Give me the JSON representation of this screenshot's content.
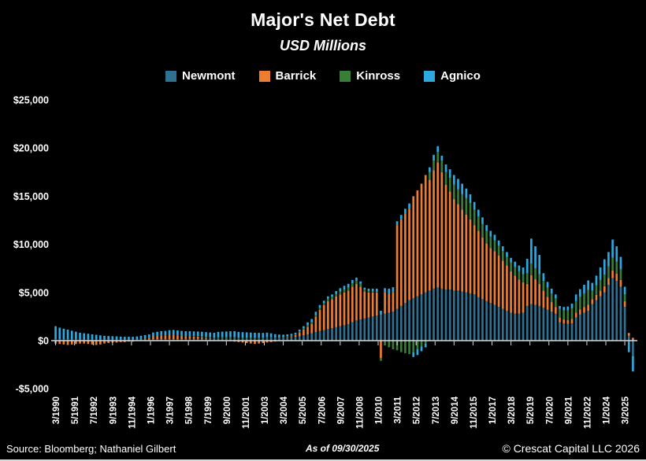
{
  "header": {
    "title": "Major's Net Debt",
    "subtitle": "USD Millions"
  },
  "footer": {
    "source": "Source: Bloomberg; Nathaniel Gilbert",
    "as_of": "As of 09/30/2025",
    "copyright": "© Crescat Capital LLC 2026"
  },
  "chart_data": {
    "type": "bar",
    "stacked": true,
    "title": "Major's Net Debt",
    "subtitle": "USD Millions",
    "xlabel": "",
    "ylabel": "USD Millions",
    "frequency": "quarterly",
    "x_start": "3/1990",
    "x_end": "9/2025",
    "ylim": [
      -5000,
      25000
    ],
    "grid": false,
    "legend_position": "top",
    "background_color": "#000000",
    "axis_color": "#d9d9d9",
    "text_color": "#ffffff",
    "y_ticks": [
      25000,
      20000,
      15000,
      10000,
      5000,
      0,
      -5000
    ],
    "y_tick_labels": [
      "$25,000",
      "$20,000",
      "$15,000",
      "$10,000",
      "$5,000",
      "$0",
      "-$5,000"
    ],
    "x_tick_labels": [
      "3/1990",
      "5/1991",
      "7/1992",
      "9/1993",
      "11/1994",
      "1/1996",
      "3/1997",
      "5/1998",
      "7/1999",
      "9/2000",
      "11/2001",
      "1/2003",
      "3/2004",
      "5/2005",
      "7/2006",
      "9/2007",
      "11/2008",
      "1/2010",
      "3/2011",
      "5/2012",
      "7/2013",
      "9/2014",
      "11/2015",
      "1/2017",
      "3/2018",
      "5/2019",
      "7/2020",
      "9/2021",
      "11/2022",
      "1/2024",
      "3/2025"
    ],
    "series": [
      {
        "name": "Newmont",
        "color": "#2E7193",
        "values": [
          150,
          150,
          140,
          140,
          130,
          130,
          120,
          120,
          120,
          110,
          110,
          100,
          100,
          100,
          100,
          100,
          100,
          100,
          100,
          100,
          120,
          120,
          120,
          120,
          150,
          150,
          150,
          150,
          160,
          160,
          160,
          160,
          180,
          180,
          180,
          180,
          200,
          200,
          200,
          200,
          220,
          220,
          220,
          220,
          220,
          210,
          200,
          200,
          200,
          200,
          210,
          210,
          250,
          260,
          270,
          280,
          320,
          340,
          360,
          380,
          450,
          550,
          650,
          750,
          900,
          1000,
          1100,
          1200,
          1300,
          1400,
          1500,
          1600,
          1700,
          1900,
          2100,
          2200,
          2300,
          2400,
          2500,
          2600,
          2700,
          2800,
          2900,
          3000,
          3300,
          3600,
          3900,
          4200,
          4400,
          4600,
          4800,
          5000,
          5200,
          5400,
          5500,
          5400,
          5300,
          5300,
          5200,
          5200,
          5100,
          5000,
          4900,
          4800,
          4500,
          4300,
          4100,
          3900,
          3700,
          3500,
          3300,
          3100,
          2900,
          2800,
          2800,
          2900,
          3600,
          3800,
          3700,
          3600,
          3400,
          3200,
          3000,
          2800,
          1900,
          1800,
          1750,
          1800,
          2400,
          2700,
          2900,
          3100,
          3800,
          4200,
          4600,
          5000,
          5800,
          6500,
          6200,
          5600,
          3500,
          500,
          -1500
        ]
      },
      {
        "name": "Barrick",
        "color": "#ED7D31",
        "values": [
          -300,
          -350,
          -400,
          -450,
          -400,
          -350,
          -300,
          -300,
          -350,
          -400,
          -450,
          -400,
          -300,
          -250,
          -200,
          -200,
          -150,
          -150,
          -100,
          -100,
          0,
          50,
          100,
          150,
          300,
          350,
          400,
          400,
          450,
          450,
          400,
          350,
          300,
          300,
          250,
          250,
          150,
          100,
          50,
          0,
          0,
          0,
          -50,
          -50,
          -100,
          -150,
          -200,
          -250,
          -300,
          -350,
          -300,
          -250,
          -200,
          -150,
          -100,
          -50,
          0,
          50,
          100,
          200,
          400,
          600,
          800,
          1000,
          1600,
          2200,
          2600,
          2900,
          3000,
          3200,
          3300,
          3400,
          3500,
          3700,
          3800,
          3400,
          2800,
          2600,
          2500,
          2400,
          -1800,
          2200,
          2000,
          2000,
          8700,
          9000,
          9300,
          9500,
          10600,
          11000,
          11500,
          12200,
          11500,
          12300,
          13000,
          12100,
          10900,
          10200,
          9500,
          9000,
          8500,
          8100,
          7700,
          7200,
          6900,
          6400,
          6000,
          5700,
          5600,
          5350,
          5000,
          4700,
          4300,
          3950,
          3550,
          3150,
          2300,
          3000,
          2700,
          2300,
          1800,
          1350,
          1000,
          700,
          500,
          400,
          400,
          450,
          500,
          550,
          600,
          650,
          500,
          550,
          600,
          650,
          700,
          800,
          750,
          700,
          600,
          300,
          300
        ]
      },
      {
        "name": "Kinross",
        "color": "#377E36",
        "values": [
          0,
          0,
          0,
          0,
          0,
          0,
          0,
          0,
          0,
          0,
          0,
          0,
          0,
          0,
          0,
          0,
          0,
          0,
          0,
          0,
          0,
          0,
          0,
          0,
          0,
          0,
          0,
          0,
          0,
          0,
          0,
          0,
          0,
          0,
          50,
          50,
          100,
          100,
          100,
          100,
          150,
          150,
          150,
          150,
          150,
          100,
          100,
          100,
          100,
          100,
          100,
          100,
          100,
          100,
          50,
          50,
          50,
          50,
          50,
          50,
          100,
          100,
          150,
          150,
          150,
          200,
          200,
          250,
          250,
          250,
          300,
          300,
          300,
          350,
          350,
          300,
          200,
          150,
          100,
          50,
          -300,
          -500,
          -700,
          -900,
          -1000,
          -1200,
          -1300,
          -1400,
          -1200,
          -900,
          -600,
          -300,
          800,
          1000,
          1100,
          1200,
          1300,
          1400,
          1500,
          1500,
          1600,
          1700,
          1700,
          1600,
          1500,
          1400,
          1300,
          1200,
          1100,
          1000,
          1000,
          900,
          900,
          900,
          850,
          850,
          1100,
          1200,
          1100,
          1000,
          1000,
          950,
          900,
          900,
          900,
          950,
          1000,
          1100,
          1200,
          1300,
          1400,
          1500,
          900,
          1000,
          1100,
          1200,
          1200,
          1300,
          1250,
          1100,
          700,
          -100,
          -100
        ]
      },
      {
        "name": "Agnico",
        "color": "#2BA9E0",
        "values": [
          1350,
          1200,
          1100,
          1000,
          900,
          800,
          700,
          650,
          600,
          550,
          500,
          450,
          400,
          380,
          360,
          340,
          320,
          300,
          300,
          300,
          320,
          340,
          360,
          380,
          400,
          420,
          440,
          460,
          480,
          500,
          500,
          500,
          500,
          500,
          480,
          470,
          470,
          480,
          500,
          520,
          540,
          560,
          580,
          600,
          620,
          600,
          580,
          560,
          540,
          520,
          500,
          490,
          480,
          400,
          350,
          300,
          250,
          220,
          200,
          200,
          200,
          250,
          300,
          350,
          350,
          300,
          250,
          250,
          250,
          300,
          350,
          400,
          400,
          350,
          300,
          250,
          200,
          250,
          300,
          350,
          400,
          450,
          500,
          550,
          400,
          450,
          500,
          550,
          -500,
          -600,
          -500,
          -400,
          500,
          600,
          600,
          500,
          800,
          900,
          1000,
          1100,
          1100,
          1000,
          900,
          800,
          700,
          700,
          600,
          600,
          600,
          550,
          500,
          500,
          500,
          550,
          600,
          700,
          1500,
          2600,
          2300,
          2000,
          800,
          600,
          500,
          400,
          300,
          350,
          400,
          500,
          700,
          800,
          900,
          1000,
          800,
          1000,
          1300,
          1600,
          1500,
          1900,
          1600,
          1300,
          800,
          -1100,
          -1600
        ]
      }
    ]
  }
}
